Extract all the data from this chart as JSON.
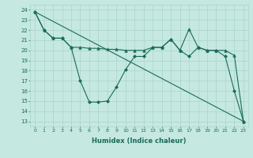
{
  "xlabel": "Humidex (Indice chaleur)",
  "bg_color": "#c5e8e0",
  "grid_color": "#aad4cc",
  "line_color": "#1a6b5a",
  "xlim": [
    -0.5,
    23.5
  ],
  "ylim": [
    12.5,
    24.5
  ],
  "xticks": [
    0,
    1,
    2,
    3,
    4,
    5,
    6,
    7,
    8,
    9,
    10,
    11,
    12,
    13,
    14,
    15,
    16,
    17,
    18,
    19,
    20,
    21,
    22,
    23
  ],
  "yticks": [
    13,
    14,
    15,
    16,
    17,
    18,
    19,
    20,
    21,
    22,
    23,
    24
  ],
  "line_diagonal": {
    "x": [
      0,
      23
    ],
    "y": [
      23.8,
      13.0
    ]
  },
  "line_diamond": {
    "x": [
      0,
      1,
      2,
      3,
      4,
      5,
      6,
      7,
      8,
      9,
      10,
      11,
      12,
      13,
      14,
      15,
      16,
      17,
      18,
      19,
      20,
      21,
      22,
      23
    ],
    "y": [
      23.8,
      22.0,
      21.2,
      21.2,
      20.3,
      17.0,
      14.9,
      14.9,
      15.0,
      16.4,
      18.1,
      19.4,
      19.4,
      20.3,
      20.3,
      21.1,
      20.0,
      19.4,
      20.3,
      20.0,
      20.0,
      19.4,
      16.0,
      13.0
    ]
  },
  "line_triangle": {
    "x": [
      0,
      1,
      2,
      3,
      4,
      5,
      6,
      7,
      8,
      9,
      10,
      11,
      12,
      13,
      14,
      15,
      16,
      17,
      18,
      19,
      20,
      21,
      22,
      23
    ],
    "y": [
      23.8,
      22.0,
      21.2,
      21.2,
      20.3,
      20.3,
      20.2,
      20.2,
      20.1,
      20.1,
      20.0,
      20.0,
      20.0,
      20.3,
      20.3,
      21.1,
      20.0,
      22.1,
      20.3,
      20.0,
      20.0,
      20.0,
      19.5,
      13.0
    ]
  }
}
